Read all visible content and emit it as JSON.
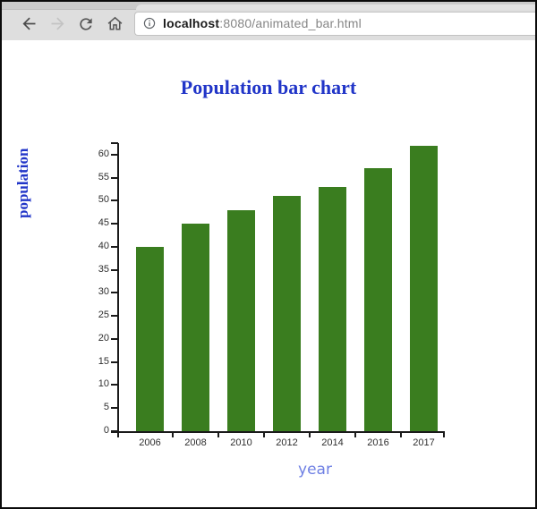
{
  "browser": {
    "toolbar": {
      "back_icon": "back-arrow",
      "forward_icon": "forward-arrow",
      "reload_icon": "reload-circular-arrow",
      "home_icon": "home-house"
    },
    "address_bar": {
      "site_info_icon": "info-circle",
      "url_host": "localhost",
      "url_path": ":8080/animated_bar.html"
    }
  },
  "chart_data": {
    "type": "bar",
    "title": "Population bar chart",
    "xlabel": "year",
    "ylabel": "population",
    "categories": [
      "2006",
      "2008",
      "2010",
      "2012",
      "2014",
      "2016",
      "2017"
    ],
    "values": [
      40,
      45,
      48,
      51,
      53,
      57,
      62
    ],
    "ylim": [
      0,
      62.5
    ],
    "yticks": [
      0,
      5,
      10,
      15,
      20,
      25,
      30,
      35,
      40,
      45,
      50,
      55,
      60
    ],
    "grid": false,
    "legend": "none",
    "colors": {
      "bar": "#3a7d1f",
      "title": "#2135c8",
      "ylabel": "#2135c8",
      "xlabel": "#6f80e4",
      "axis": "#1a1a1a",
      "tick_text": "#2f2f2f"
    }
  }
}
